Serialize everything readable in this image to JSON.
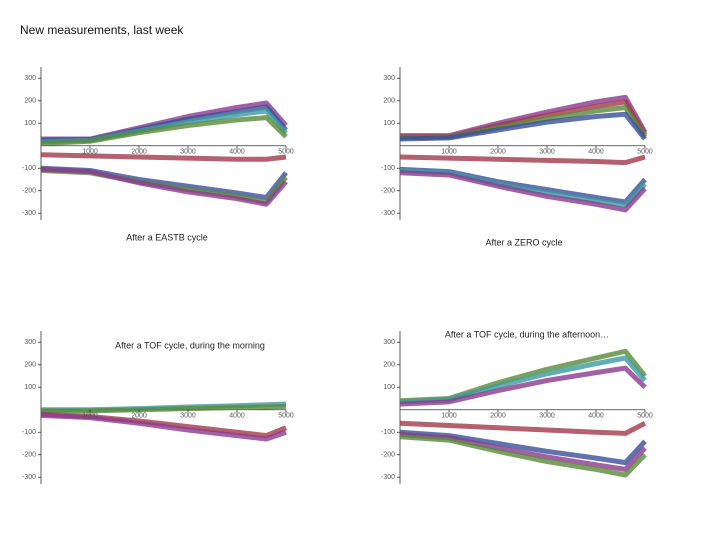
{
  "title": "New measurements, last week",
  "chart_data": [
    {
      "type": "line",
      "title": "After a EASTB cycle",
      "xlim": [
        0,
        5000
      ],
      "ylim": [
        -330,
        350
      ],
      "xticks": [
        1000,
        2000,
        3000,
        4000,
        5000
      ],
      "yticks": [
        -300,
        -200,
        -100,
        100,
        200,
        300
      ],
      "x": [
        0,
        1000,
        2000,
        3000,
        4000,
        4600,
        5000
      ],
      "series": [
        {
          "color": "#8b3a8f",
          "values": [
            30,
            30,
            80,
            130,
            170,
            190,
            90
          ]
        },
        {
          "color": "#3a4f9a",
          "values": [
            25,
            27,
            72,
            118,
            152,
            172,
            70
          ]
        },
        {
          "color": "#3a9aa0",
          "values": [
            18,
            24,
            66,
            105,
            138,
            155,
            55
          ]
        },
        {
          "color": "#5a8a3a",
          "values": [
            10,
            20,
            58,
            90,
            115,
            125,
            40
          ]
        },
        {
          "color": "#a03a4a",
          "values": [
            -40,
            -45,
            -50,
            -55,
            -60,
            -60,
            -50
          ]
        },
        {
          "color": "#3a4f9a",
          "values": [
            -100,
            -110,
            -150,
            -180,
            -210,
            -230,
            -120
          ]
        },
        {
          "color": "#5a8a3a",
          "values": [
            -110,
            -120,
            -160,
            -195,
            -225,
            -250,
            -140
          ]
        },
        {
          "color": "#8b3a8f",
          "values": [
            -105,
            -115,
            -165,
            -205,
            -235,
            -260,
            -160
          ]
        }
      ]
    },
    {
      "type": "line",
      "title": "After a ZERO cycle",
      "xlim": [
        0,
        5000
      ],
      "ylim": [
        -330,
        350
      ],
      "xticks": [
        1000,
        2000,
        3000,
        4000,
        5000
      ],
      "yticks": [
        -300,
        -200,
        -100,
        100,
        200,
        300
      ],
      "x": [
        0,
        1000,
        2000,
        3000,
        4000,
        4600,
        5000
      ],
      "series": [
        {
          "color": "#8b3a8f",
          "values": [
            45,
            45,
            100,
            150,
            195,
            215,
            60
          ]
        },
        {
          "color": "#a03a4a",
          "values": [
            40,
            40,
            90,
            135,
            175,
            195,
            50
          ]
        },
        {
          "color": "#5a8a3a",
          "values": [
            35,
            38,
            80,
            120,
            155,
            170,
            40
          ]
        },
        {
          "color": "#3a4f9a",
          "values": [
            30,
            35,
            70,
            105,
            130,
            140,
            30
          ]
        },
        {
          "color": "#a03a4a",
          "values": [
            -50,
            -55,
            -60,
            -65,
            -70,
            -75,
            -50
          ]
        },
        {
          "color": "#3a4f9a",
          "values": [
            -105,
            -115,
            -160,
            -195,
            -230,
            -250,
            -150
          ]
        },
        {
          "color": "#3a9aa0",
          "values": [
            -110,
            -120,
            -170,
            -210,
            -245,
            -265,
            -170
          ]
        },
        {
          "color": "#8b3a8f",
          "values": [
            -120,
            -130,
            -180,
            -225,
            -260,
            -285,
            -190
          ]
        }
      ]
    },
    {
      "type": "line",
      "title": "After a TOF cycle, during the morning",
      "xlim": [
        0,
        5000
      ],
      "ylim": [
        -330,
        350
      ],
      "xticks": [
        1000,
        2000,
        3000,
        4000,
        5000
      ],
      "yticks": [
        -300,
        -200,
        -100,
        100,
        200,
        300
      ],
      "x": [
        0,
        1000,
        2000,
        3000,
        4000,
        4600,
        5000
      ],
      "series": [
        {
          "color": "#3a9aa0",
          "values": [
            0,
            0,
            5,
            12,
            18,
            22,
            25
          ]
        },
        {
          "color": "#5a8a3a",
          "values": [
            -5,
            -5,
            0,
            5,
            10,
            12,
            15
          ]
        },
        {
          "color": "#a03a4a",
          "values": [
            -20,
            -30,
            -50,
            -75,
            -100,
            -115,
            -80
          ]
        },
        {
          "color": "#8b3a8f",
          "values": [
            -25,
            -35,
            -60,
            -90,
            -115,
            -130,
            -100
          ]
        }
      ]
    },
    {
      "type": "line",
      "title": "After a TOF cycle, during the afternoon…",
      "xlim": [
        0,
        5000
      ],
      "ylim": [
        -330,
        350
      ],
      "xticks": [
        1000,
        2000,
        3000,
        4000,
        5000
      ],
      "yticks": [
        -300,
        -200,
        -100,
        100,
        200,
        300
      ],
      "x": [
        0,
        1000,
        2000,
        3000,
        4000,
        4600,
        5000
      ],
      "series": [
        {
          "color": "#5a8a3a",
          "values": [
            40,
            50,
            120,
            180,
            230,
            260,
            150
          ]
        },
        {
          "color": "#3a9aa0",
          "values": [
            35,
            45,
            105,
            160,
            205,
            230,
            130
          ]
        },
        {
          "color": "#8b3a8f",
          "values": [
            25,
            35,
            85,
            130,
            165,
            185,
            100
          ]
        },
        {
          "color": "#a03a4a",
          "values": [
            -60,
            -70,
            -80,
            -90,
            -100,
            -105,
            -60
          ]
        },
        {
          "color": "#3a4f9a",
          "values": [
            -100,
            -115,
            -150,
            -185,
            -215,
            -235,
            -140
          ]
        },
        {
          "color": "#8b3a8f",
          "values": [
            -110,
            -125,
            -170,
            -210,
            -245,
            -265,
            -170
          ]
        },
        {
          "color": "#5a8a3a",
          "values": [
            -120,
            -135,
            -185,
            -230,
            -265,
            -290,
            -200
          ]
        }
      ]
    }
  ]
}
